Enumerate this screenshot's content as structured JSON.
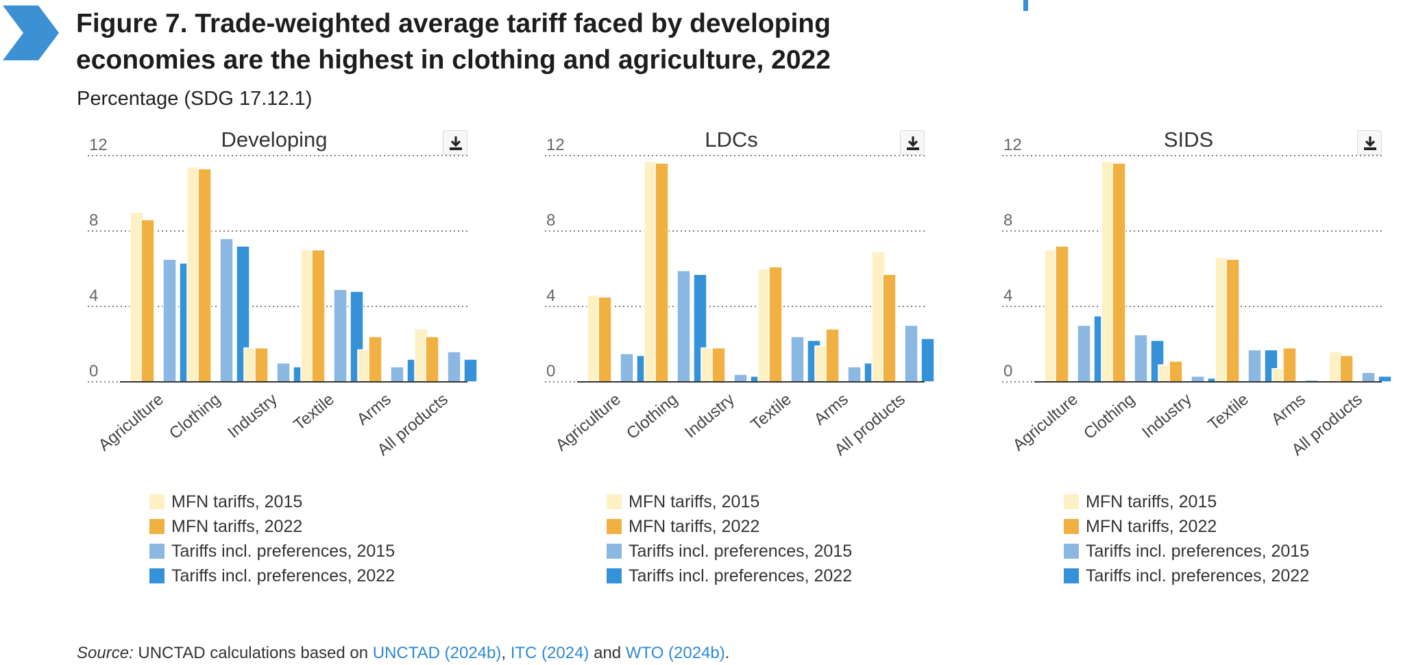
{
  "figure": {
    "title": "Figure 7. Trade-weighted average tariff faced by developing economies are the highest in clothing and agriculture, 2022",
    "subtitle": "Percentage (SDG 17.12.1)"
  },
  "colors": {
    "mfn_2015": "#fdf0c2",
    "mfn_2022": "#f0b142",
    "pref_2015": "#8ab8e2",
    "pref_2022": "#3592d8",
    "chevron": "#3c90d4"
  },
  "panels": [
    {
      "title": "Developing",
      "download_label": "download-icon",
      "legend": [
        "MFN tariffs, 2015",
        "MFN tariffs, 2022",
        "Tariffs incl. preferences, 2015",
        "Tariffs incl. preferences, 2022"
      ]
    },
    {
      "title": "LDCs",
      "download_label": "download-icon",
      "legend": [
        "MFN tariffs, 2015",
        "MFN tariffs, 2022",
        "Tariffs incl. preferences, 2015",
        "Tariffs incl. preferences, 2022"
      ]
    },
    {
      "title": "SIDS",
      "download_label": "download-icon",
      "legend": [
        "MFN tariffs, 2015",
        "MFN tariffs, 2022",
        "Tariffs incl. preferences, 2015",
        "Tariffs incl. preferences, 2022"
      ]
    }
  ],
  "chart_data": [
    {
      "type": "bar",
      "title": "Developing",
      "categories": [
        "Agriculture",
        "Clothing",
        "Industry",
        "Textile",
        "Arms",
        "All products"
      ],
      "yticks": [
        "0",
        "4",
        "8",
        "12"
      ],
      "ylim": [
        0,
        12
      ],
      "xlabel": "",
      "ylabel": "",
      "series": [
        {
          "name": "MFN tariffs, 2015",
          "values": [
            9.0,
            11.4,
            1.8,
            7.0,
            1.7,
            2.8
          ]
        },
        {
          "name": "MFN tariffs, 2022",
          "values": [
            8.6,
            11.3,
            1.8,
            7.0,
            2.4,
            2.4
          ]
        },
        {
          "name": "Tariffs incl. preferences, 2015",
          "values": [
            6.5,
            7.6,
            1.0,
            4.9,
            0.8,
            1.6
          ]
        },
        {
          "name": "Tariffs incl. preferences, 2022",
          "values": [
            6.3,
            7.2,
            0.8,
            4.8,
            1.2,
            1.2
          ]
        }
      ]
    },
    {
      "type": "bar",
      "title": "LDCs",
      "categories": [
        "Agriculture",
        "Clothing",
        "Industry",
        "Textile",
        "Arms",
        "All products"
      ],
      "yticks": [
        "0",
        "4",
        "8",
        "12"
      ],
      "ylim": [
        0,
        12
      ],
      "xlabel": "",
      "ylabel": "",
      "series": [
        {
          "name": "MFN tariffs, 2015",
          "values": [
            4.6,
            11.7,
            1.8,
            6.0,
            1.9,
            6.9
          ]
        },
        {
          "name": "MFN tariffs, 2022",
          "values": [
            4.5,
            11.6,
            1.8,
            6.1,
            2.8,
            5.7
          ]
        },
        {
          "name": "Tariffs incl. preferences, 2015",
          "values": [
            1.5,
            5.9,
            0.4,
            2.4,
            0.8,
            3.0
          ]
        },
        {
          "name": "Tariffs incl. preferences, 2022",
          "values": [
            1.4,
            5.7,
            0.3,
            2.2,
            1.0,
            2.3
          ]
        }
      ]
    },
    {
      "type": "bar",
      "title": "SIDS",
      "categories": [
        "Agriculture",
        "Clothing",
        "Industry",
        "Textile",
        "Arms",
        "All products"
      ],
      "yticks": [
        "0",
        "4",
        "8",
        "12"
      ],
      "ylim": [
        0,
        12
      ],
      "xlabel": "",
      "ylabel": "",
      "series": [
        {
          "name": "MFN tariffs, 2015",
          "values": [
            7.0,
            11.7,
            0.9,
            6.6,
            0.7,
            1.6
          ]
        },
        {
          "name": "MFN tariffs, 2022",
          "values": [
            7.2,
            11.6,
            1.1,
            6.5,
            1.8,
            1.4
          ]
        },
        {
          "name": "Tariffs incl. preferences, 2015",
          "values": [
            3.0,
            2.5,
            0.3,
            1.7,
            0.1,
            0.5
          ]
        },
        {
          "name": "Tariffs incl. preferences, 2022",
          "values": [
            3.5,
            2.2,
            0.2,
            1.7,
            0.0,
            0.3
          ]
        }
      ]
    }
  ],
  "source": {
    "label": "Source:",
    "text_before": " UNCTAD calculations based on ",
    "link1": "UNCTAD (2024b)",
    "sep1": ", ",
    "link2": "ITC (2024)",
    "sep2": " and ",
    "link3": "WTO (2024b)",
    "end": "."
  }
}
